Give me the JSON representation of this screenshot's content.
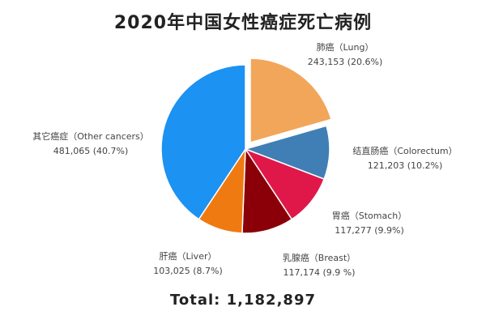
{
  "title": "2020年中国女性癌症死亡病例",
  "total_text": "Total: 1,182,897",
  "chart_data": {
    "type": "pie",
    "title": "2020年中国女性癌症死亡病例",
    "slices": [
      {
        "label": "肺癌（Lung）",
        "value": 243153,
        "value_text": "243,153",
        "percent_text": "(20.6%)",
        "color": "#F2A65A",
        "exploded": true
      },
      {
        "label": "结直肠癌（Colorectum）",
        "value": 121203,
        "value_text": "121,203",
        "percent_text": "(10.2%)",
        "color": "#3F7FB5",
        "exploded": false
      },
      {
        "label": "胃癌（Stomach）",
        "value": 117277,
        "value_text": "117,277",
        "percent_text": "(9.9%)",
        "color": "#E0184A",
        "exploded": false
      },
      {
        "label": "乳腺癌（Breast）",
        "value": 117174,
        "value_text": "117,174",
        "percent_text": "(9.9 %)",
        "color": "#8B0008",
        "exploded": false
      },
      {
        "label": "肝癌（Liver）",
        "value": 103025,
        "value_text": "103,025",
        "percent_text": "(8.7%)",
        "color": "#F07A12",
        "exploded": false
      },
      {
        "label": "其它癌症（Other cancers）",
        "value": 481065,
        "value_text": "481,065",
        "percent_text": "(40.7%)",
        "color": "#1C92F2",
        "exploded": false
      }
    ],
    "total": 1182897
  }
}
